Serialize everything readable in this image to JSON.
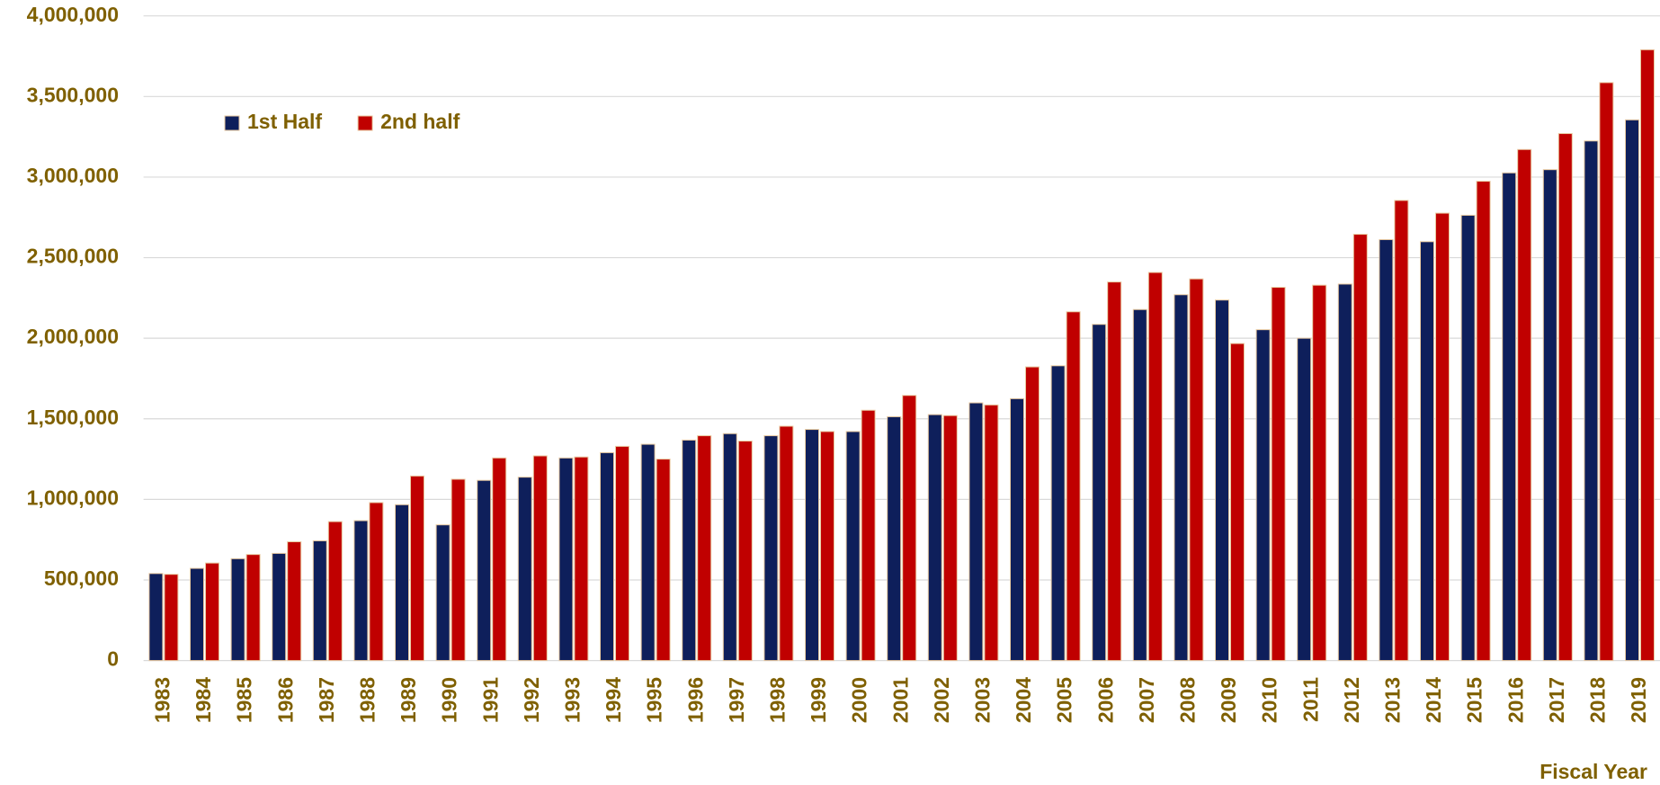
{
  "chart_data": {
    "type": "bar",
    "x_label": "Fiscal Year",
    "categories": [
      "1983",
      "1984",
      "1985",
      "1986",
      "1987",
      "1988",
      "1989",
      "1990",
      "1991",
      "1992",
      "1993",
      "1994",
      "1995",
      "1996",
      "1997",
      "1998",
      "1999",
      "2000",
      "2001",
      "2002",
      "2003",
      "2004",
      "2005",
      "2006",
      "2007",
      "2008",
      "2009",
      "2010",
      "2011",
      "2012",
      "2013",
      "2014",
      "2015",
      "2016",
      "2017",
      "2018",
      "2019"
    ],
    "series": [
      {
        "name": "1st Half",
        "color": "#0e1f5b",
        "values": [
          540000,
          572000,
          632000,
          665000,
          743000,
          868000,
          967000,
          842000,
          1118000,
          1138000,
          1257000,
          1290000,
          1342000,
          1368000,
          1408000,
          1395000,
          1434000,
          1421000,
          1513000,
          1526000,
          1599000,
          1625000,
          1829000,
          2086000,
          2178000,
          2270000,
          2237000,
          2053000,
          2000000,
          2336000,
          2612000,
          2599000,
          2763000,
          3026000,
          3046000,
          3224000,
          3355000
        ]
      },
      {
        "name": "2nd half",
        "color": "#c00000",
        "values": [
          535000,
          605000,
          658000,
          737000,
          862000,
          980000,
          1145000,
          1125000,
          1257000,
          1270000,
          1263000,
          1329000,
          1250000,
          1395000,
          1362000,
          1454000,
          1421000,
          1553000,
          1645000,
          1520000,
          1586000,
          1822000,
          2164000,
          2349000,
          2408000,
          2368000,
          1967000,
          2316000,
          2329000,
          2645000,
          2855000,
          2776000,
          2974000,
          3171000,
          3270000,
          3586000,
          3790000
        ]
      }
    ],
    "ylim": [
      0,
      4000000
    ],
    "yticks": [
      0,
      {
        "value": 500000,
        "label": "500,000"
      },
      {
        "value": 1000000,
        "label": "1,000,000"
      },
      {
        "value": 1500000,
        "label": "1,500,000"
      },
      {
        "value": 2000000,
        "label": "2,000,000"
      },
      {
        "value": 2500000,
        "label": "2,500,000"
      },
      {
        "value": 3000000,
        "label": "3,000,000"
      },
      {
        "value": 3500000,
        "label": "3,500,000"
      },
      {
        "value": 4000000,
        "label": "4,000,000"
      }
    ],
    "grid": true,
    "legend": "top-left"
  }
}
